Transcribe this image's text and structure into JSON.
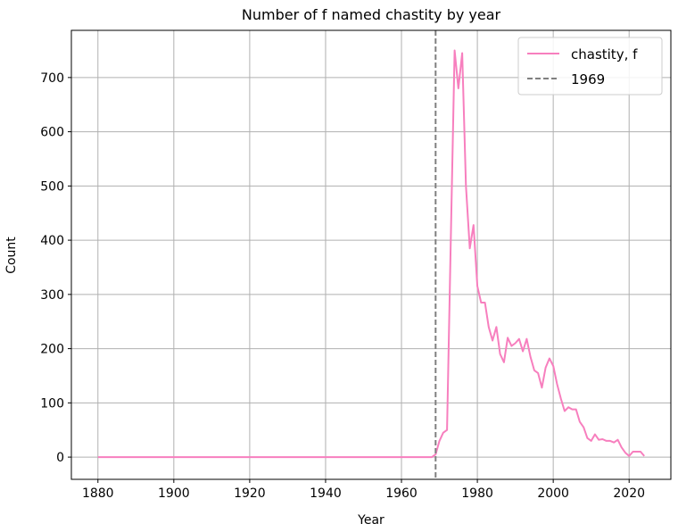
{
  "chart_data": {
    "type": "line",
    "title": "Number of f named chastity by year",
    "xlabel": "Year",
    "ylabel": "Count",
    "xlim": [
      1873,
      2031
    ],
    "ylim": [
      -41,
      787
    ],
    "xticks": [
      1880,
      1900,
      1920,
      1940,
      1960,
      1980,
      2000,
      2020
    ],
    "yticks": [
      0,
      100,
      200,
      300,
      400,
      500,
      600,
      700
    ],
    "grid": true,
    "legend_position": "top-right",
    "x_start": 1880,
    "x_end": 2024,
    "series": [
      {
        "name": "chastity, f",
        "color": "#f77fbe",
        "style": "solid",
        "x": [
          1880,
          1881,
          1882,
          1883,
          1884,
          1885,
          1886,
          1887,
          1888,
          1889,
          1890,
          1891,
          1892,
          1893,
          1894,
          1895,
          1896,
          1897,
          1898,
          1899,
          1900,
          1901,
          1902,
          1903,
          1904,
          1905,
          1906,
          1907,
          1908,
          1909,
          1910,
          1911,
          1912,
          1913,
          1914,
          1915,
          1916,
          1917,
          1918,
          1919,
          1920,
          1921,
          1922,
          1923,
          1924,
          1925,
          1926,
          1927,
          1928,
          1929,
          1930,
          1931,
          1932,
          1933,
          1934,
          1935,
          1936,
          1937,
          1938,
          1939,
          1940,
          1941,
          1942,
          1943,
          1944,
          1945,
          1946,
          1947,
          1948,
          1949,
          1950,
          1951,
          1952,
          1953,
          1954,
          1955,
          1956,
          1957,
          1958,
          1959,
          1960,
          1961,
          1962,
          1963,
          1964,
          1965,
          1966,
          1967,
          1968,
          1969,
          1970,
          1971,
          1972,
          1973,
          1974,
          1975,
          1976,
          1977,
          1978,
          1979,
          1980,
          1981,
          1982,
          1983,
          1984,
          1985,
          1986,
          1987,
          1988,
          1989,
          1990,
          1991,
          1992,
          1993,
          1994,
          1995,
          1996,
          1997,
          1998,
          1999,
          2000,
          2001,
          2002,
          2003,
          2004,
          2005,
          2006,
          2007,
          2008,
          2009,
          2010,
          2011,
          2012,
          2013,
          2014,
          2015,
          2016,
          2017,
          2018,
          2019,
          2020,
          2021,
          2022,
          2023,
          2024
        ],
        "y": [
          0,
          0,
          0,
          0,
          0,
          0,
          0,
          0,
          0,
          0,
          0,
          0,
          0,
          0,
          0,
          0,
          0,
          0,
          0,
          0,
          0,
          0,
          0,
          0,
          0,
          0,
          0,
          0,
          0,
          0,
          0,
          0,
          0,
          0,
          0,
          0,
          0,
          0,
          0,
          0,
          0,
          0,
          0,
          0,
          0,
          0,
          0,
          0,
          0,
          0,
          0,
          0,
          0,
          0,
          0,
          0,
          0,
          0,
          0,
          0,
          0,
          0,
          0,
          0,
          0,
          0,
          0,
          0,
          0,
          0,
          0,
          0,
          0,
          0,
          0,
          0,
          0,
          0,
          0,
          0,
          0,
          0,
          0,
          0,
          0,
          0,
          0,
          0,
          0,
          5,
          30,
          45,
          50,
          400,
          750,
          680,
          745,
          500,
          385,
          428,
          315,
          285,
          285,
          240,
          215,
          240,
          190,
          175,
          220,
          205,
          210,
          218,
          195,
          218,
          185,
          160,
          155,
          128,
          165,
          182,
          168,
          135,
          108,
          85,
          92,
          88,
          88,
          65,
          55,
          35,
          30,
          42,
          32,
          33,
          30,
          30,
          27,
          32,
          18,
          8,
          2,
          10,
          10,
          10,
          2
        ]
      }
    ],
    "vlines": [
      {
        "name": "1969",
        "x": 1969,
        "color": "#808080",
        "style": "dashed"
      }
    ]
  }
}
